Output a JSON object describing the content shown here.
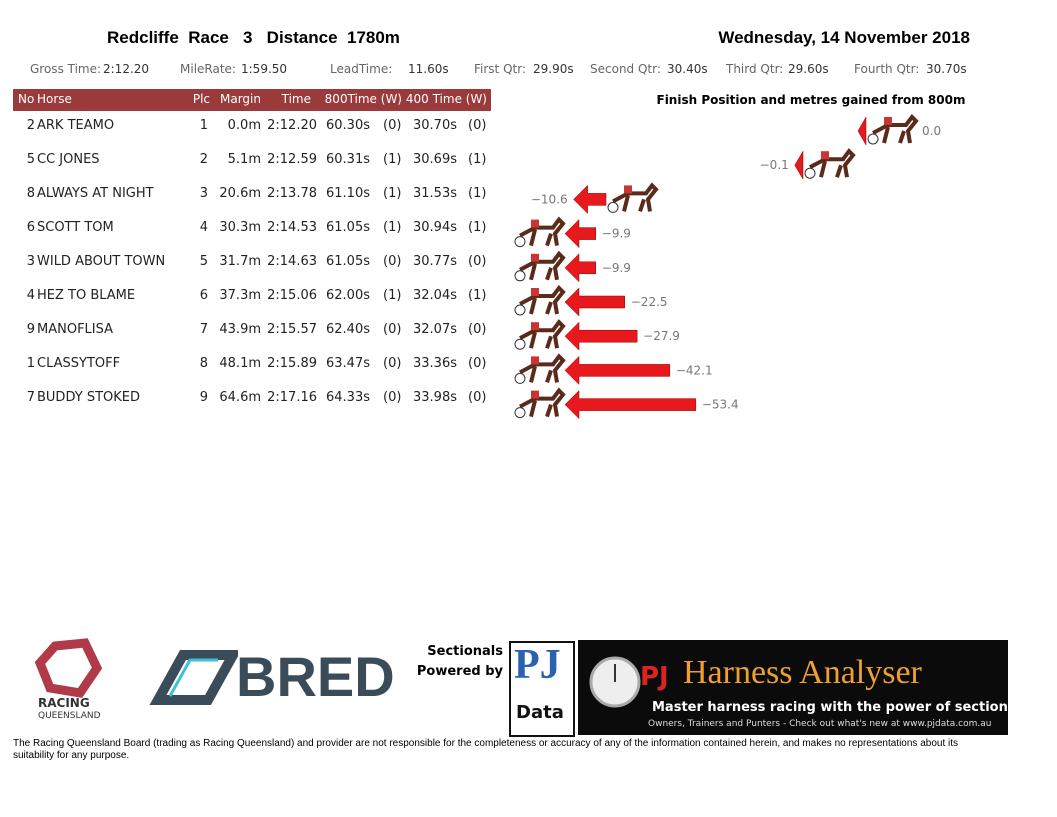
{
  "header": {
    "title": "Redcliffe  Race   3   Distance  1780m",
    "date": "Wednesday, 14 November 2018"
  },
  "summary": [
    [
      "Gross Time:",
      "2:12.20"
    ],
    [
      "MileRate:",
      "1:59.50"
    ],
    [
      "LeadTime:",
      "11.60s"
    ],
    [
      "First Qtr:",
      "29.90s"
    ],
    [
      "Second Qtr:",
      "30.40s"
    ],
    [
      "Third Qtr:",
      "29.60s"
    ],
    [
      "Fourth Qtr:",
      "30.70s"
    ]
  ],
  "table": {
    "columns": [
      "No",
      "Horse",
      "Plc",
      "Margin",
      "Time",
      "800Time (W)",
      "400 Time (W)"
    ],
    "rows": [
      [
        "2",
        "ARK TEAMO",
        "1",
        "0.0m",
        "2:12.20",
        "60.30s",
        "(0)",
        "30.70s",
        "(0)"
      ],
      [
        "5",
        "CC JONES",
        "2",
        "5.1m",
        "2:12.59",
        "60.31s",
        "(1)",
        "30.69s",
        "(1)"
      ],
      [
        "8",
        "ALWAYS AT NIGHT",
        "3",
        "20.6m",
        "2:13.78",
        "61.10s",
        "(1)",
        "31.53s",
        "(1)"
      ],
      [
        "6",
        "SCOTT TOM",
        "4",
        "30.3m",
        "2:14.53",
        "61.05s",
        "(1)",
        "30.94s",
        "(1)"
      ],
      [
        "3",
        "WILD ABOUT TOWN",
        "5",
        "31.7m",
        "2:14.63",
        "61.05s",
        "(0)",
        "30.77s",
        "(0)"
      ],
      [
        "4",
        "HEZ TO BLAME",
        "6",
        "37.3m",
        "2:15.06",
        "62.00s",
        "(1)",
        "32.04s",
        "(1)"
      ],
      [
        "9",
        "MANOFLISA",
        "7",
        "43.9m",
        "2:15.57",
        "62.40s",
        "(0)",
        "32.07s",
        "(0)"
      ],
      [
        "1",
        "CLASSYTOFF",
        "8",
        "48.1m",
        "2:15.89",
        "63.47s",
        "(0)",
        "33.36s",
        "(0)"
      ],
      [
        "7",
        "BUDDY STOKED",
        "9",
        "64.6m",
        "2:17.16",
        "64.33s",
        "(0)",
        "33.98s",
        "(0)"
      ]
    ]
  },
  "chart_data": {
    "type": "arrow",
    "title": "Finish Position and metres gained from 800m",
    "values": [
      0.0,
      -0.1,
      -10.6,
      -9.9,
      -9.9,
      -22.5,
      -27.9,
      -42.1,
      -53.4
    ],
    "value_labels": [
      "0.0",
      "−0.1",
      "−10.6",
      "−9.9",
      "−9.9",
      "−22.5",
      "−27.9",
      "−42.1",
      "−53.4"
    ],
    "color": "#e8191c"
  },
  "footer": {
    "rq1": "RACING",
    "rq2": "QUEENSLAND",
    "bred": "BRED",
    "sect1": "Sectionals",
    "sect2": "Powered by",
    "pj": "PJ",
    "data": "Data",
    "pjh1": "PJ",
    "pjh2": "Harness Analyser",
    "tagline": "Master harness racing with the power of sectionals",
    "sub": "Owners, Trainers and Punters - Check out what's new at www.pjdata.com.au",
    "disclaimer": "The Racing Queensland Board (trading as Racing Queensland) and provider are not responsible for the completeness or accuracy of any of the information contained herein, and makes no representations about its suitability for any purpose."
  }
}
